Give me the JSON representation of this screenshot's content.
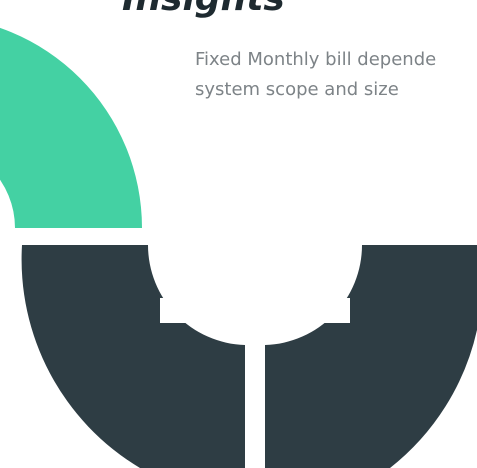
{
  "heading": "Insights",
  "description": {
    "lines": [
      "Fixed Monthly bill depende",
      "system scope and size"
    ]
  }
}
